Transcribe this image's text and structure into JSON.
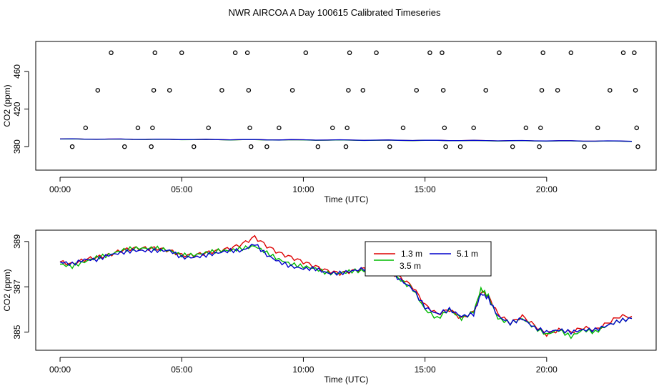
{
  "title": "NWR AIRCOA A  Day 100615  Calibrated Timeseries",
  "chart_data": [
    {
      "type": "scatter",
      "title": "",
      "xlabel": "Time (UTC)",
      "ylabel": "CO2 (ppm)",
      "xlim": [
        -1.0,
        24.5
      ],
      "ylim": [
        355,
        492
      ],
      "x_ticks": [
        0,
        5,
        10,
        15,
        20
      ],
      "x_tick_labels": [
        "00:00",
        "05:00",
        "10:00",
        "15:00",
        "20:00"
      ],
      "y_ticks": [
        380,
        420,
        460
      ],
      "y_tick_labels": [
        "380",
        "420",
        "460"
      ],
      "points": [
        [
          0.5,
          380
        ],
        [
          1.05,
          400
        ],
        [
          1.55,
          440
        ],
        [
          2.1,
          480
        ],
        [
          2.65,
          380
        ],
        [
          3.2,
          400
        ],
        [
          3.75,
          380
        ],
        [
          3.8,
          400
        ],
        [
          3.85,
          440
        ],
        [
          3.9,
          480
        ],
        [
          4.5,
          440
        ],
        [
          5.0,
          480
        ],
        [
          5.5,
          380
        ],
        [
          6.1,
          400
        ],
        [
          6.65,
          440
        ],
        [
          7.2,
          480
        ],
        [
          7.7,
          480
        ],
        [
          7.75,
          440
        ],
        [
          7.8,
          400
        ],
        [
          7.85,
          380
        ],
        [
          8.5,
          380
        ],
        [
          9.0,
          400
        ],
        [
          9.55,
          440
        ],
        [
          10.1,
          480
        ],
        [
          10.6,
          380
        ],
        [
          11.2,
          400
        ],
        [
          11.75,
          380
        ],
        [
          11.8,
          400
        ],
        [
          11.85,
          440
        ],
        [
          11.9,
          480
        ],
        [
          12.45,
          440
        ],
        [
          13.0,
          480
        ],
        [
          13.55,
          380
        ],
        [
          14.1,
          400
        ],
        [
          14.65,
          440
        ],
        [
          15.2,
          480
        ],
        [
          15.7,
          480
        ],
        [
          15.75,
          440
        ],
        [
          15.8,
          400
        ],
        [
          15.85,
          380
        ],
        [
          16.45,
          380
        ],
        [
          17.0,
          400
        ],
        [
          17.5,
          440
        ],
        [
          18.05,
          480
        ],
        [
          18.6,
          380
        ],
        [
          19.15,
          400
        ],
        [
          19.7,
          380
        ],
        [
          19.75,
          400
        ],
        [
          19.8,
          440
        ],
        [
          19.85,
          480
        ],
        [
          20.45,
          440
        ],
        [
          21.0,
          480
        ],
        [
          21.55,
          380
        ],
        [
          22.1,
          400
        ],
        [
          22.6,
          440
        ],
        [
          23.15,
          480
        ],
        [
          23.6,
          480
        ],
        [
          23.65,
          440
        ],
        [
          23.7,
          400
        ],
        [
          23.75,
          380
        ]
      ],
      "series": [
        {
          "name": "1.3 m",
          "color": "#dd0000",
          "start": 388.2,
          "end": 385.8
        },
        {
          "name": "3.5 m",
          "color": "#00bb00",
          "start": 388.1,
          "end": 385.7
        },
        {
          "name": "5.1 m",
          "color": "#0000cc",
          "start": 388.2,
          "end": 385.9
        }
      ]
    },
    {
      "type": "line",
      "title": "",
      "xlabel": "Time (UTC)",
      "ylabel": "CO2 (ppm)",
      "xlim": [
        -1.0,
        24.5
      ],
      "ylim": [
        384.2,
        389.5
      ],
      "x_ticks": [
        0,
        5,
        10,
        15,
        20
      ],
      "x_tick_labels": [
        "00:00",
        "05:00",
        "10:00",
        "15:00",
        "20:00"
      ],
      "y_ticks": [
        385,
        387,
        389
      ],
      "y_tick_labels": [
        "385",
        "387",
        "389"
      ],
      "legend": {
        "placement": "top-center",
        "entries": [
          "1.3 m",
          "3.5 m",
          "5.1 m"
        ]
      },
      "x": [
        0.0,
        0.5,
        1.0,
        1.5,
        2.0,
        2.5,
        3.0,
        3.5,
        4.0,
        4.5,
        5.0,
        5.5,
        6.0,
        6.5,
        7.0,
        7.5,
        8.0,
        8.5,
        9.0,
        9.5,
        10.0,
        10.5,
        11.0,
        11.5,
        12.0,
        12.5,
        13.0,
        13.5,
        14.0,
        14.5,
        15.0,
        15.5,
        16.0,
        16.5,
        17.0,
        17.3,
        17.6,
        18.0,
        18.5,
        19.0,
        19.5,
        20.0,
        20.5,
        21.0,
        21.5,
        22.0,
        22.5,
        23.0,
        23.5
      ],
      "series": [
        {
          "name": "1.3 m",
          "color": "#dd0000",
          "values": [
            388.1,
            388.0,
            388.2,
            388.3,
            388.4,
            388.6,
            388.7,
            388.7,
            388.7,
            388.6,
            388.4,
            388.4,
            388.5,
            388.6,
            388.7,
            388.9,
            389.2,
            388.8,
            388.5,
            388.3,
            388.1,
            387.9,
            387.7,
            387.6,
            387.7,
            387.8,
            387.9,
            387.7,
            387.4,
            387.0,
            386.2,
            385.8,
            386.0,
            385.6,
            385.9,
            386.8,
            386.6,
            385.8,
            385.4,
            385.7,
            385.3,
            384.9,
            385.1,
            385.0,
            385.2,
            385.1,
            385.4,
            385.7,
            385.7
          ]
        },
        {
          "name": "3.5 m",
          "color": "#00bb00",
          "values": [
            388.0,
            387.9,
            388.1,
            388.3,
            388.4,
            388.6,
            388.7,
            388.7,
            388.7,
            388.6,
            388.4,
            388.4,
            388.5,
            388.6,
            388.6,
            388.7,
            388.8,
            388.5,
            388.2,
            388.0,
            387.9,
            387.8,
            387.6,
            387.6,
            387.7,
            387.7,
            387.9,
            387.7,
            387.3,
            386.9,
            386.0,
            385.6,
            386.0,
            385.6,
            385.9,
            386.9,
            386.6,
            385.6,
            385.4,
            385.6,
            385.2,
            384.9,
            385.1,
            384.8,
            385.1,
            385.0,
            385.3,
            385.5,
            385.6
          ]
        },
        {
          "name": "5.1 m",
          "color": "#0000cc",
          "values": [
            388.1,
            388.0,
            388.2,
            388.2,
            388.4,
            388.5,
            388.6,
            388.6,
            388.6,
            388.6,
            388.3,
            388.3,
            388.4,
            388.5,
            388.6,
            388.6,
            388.9,
            388.4,
            388.1,
            387.9,
            387.8,
            387.8,
            387.6,
            387.6,
            387.7,
            387.8,
            387.9,
            387.7,
            387.3,
            386.9,
            386.1,
            385.8,
            386.0,
            385.7,
            385.8,
            386.7,
            386.5,
            385.7,
            385.4,
            385.6,
            385.2,
            385.0,
            385.1,
            385.0,
            385.1,
            385.1,
            385.3,
            385.5,
            385.6
          ]
        }
      ]
    }
  ]
}
